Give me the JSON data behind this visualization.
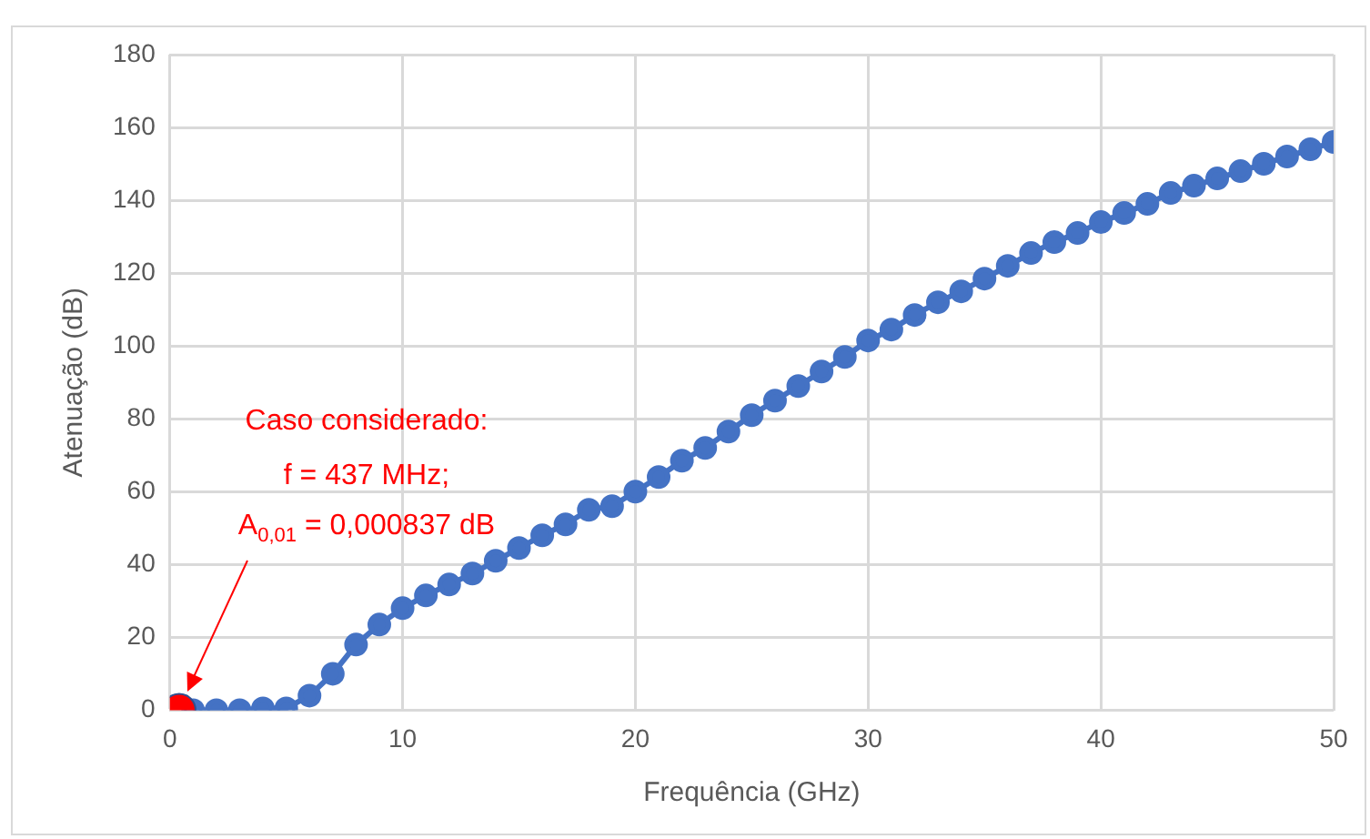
{
  "chart_data": {
    "type": "scatter",
    "xlabel": "Frequência (GHz)",
    "ylabel": "Atenuação (dB)",
    "series": [
      {
        "type": "line",
        "color": "#4472c4",
        "x": [
          1,
          2,
          3,
          4,
          5,
          6,
          7,
          8,
          9,
          10,
          11,
          12,
          13,
          14,
          15,
          16,
          17,
          18,
          19,
          20,
          21,
          22,
          23,
          24,
          25,
          26,
          27,
          28,
          29,
          30,
          31,
          32,
          33,
          34,
          35,
          36,
          37,
          38,
          39,
          40,
          41,
          42,
          43,
          44,
          45,
          46,
          47,
          48,
          49,
          50
        ],
        "values": [
          0,
          0,
          0,
          0.5,
          0.5,
          4,
          10,
          18,
          23.5,
          28,
          31.5,
          34.5,
          37.5,
          41,
          44.5,
          48,
          51,
          55,
          56,
          60,
          64,
          68.5,
          72,
          76.5,
          81,
          85,
          89,
          93,
          97,
          101.5,
          104.5,
          108.5,
          112,
          115,
          118.5,
          122,
          125.5,
          128.5,
          131,
          134,
          136.5,
          139,
          142,
          144,
          146,
          148,
          150,
          152,
          154,
          156
        ]
      },
      {
        "color": "#ff0000",
        "x": [
          0.4
        ],
        "values": [
          0
        ]
      }
    ],
    "xlim": [
      0,
      50
    ],
    "xticks": [
      0,
      10,
      20,
      30,
      40,
      50
    ],
    "ylim": [
      0,
      180
    ],
    "yticks": [
      0,
      20,
      40,
      60,
      80,
      100,
      120,
      140,
      160,
      180
    ],
    "grid": true,
    "legend": false,
    "marker": "circle",
    "annotations": [
      "Caso considerado:",
      "f = 437 MHz;",
      "A$_{0,01}$ = 0,000837 dB"
    ]
  }
}
